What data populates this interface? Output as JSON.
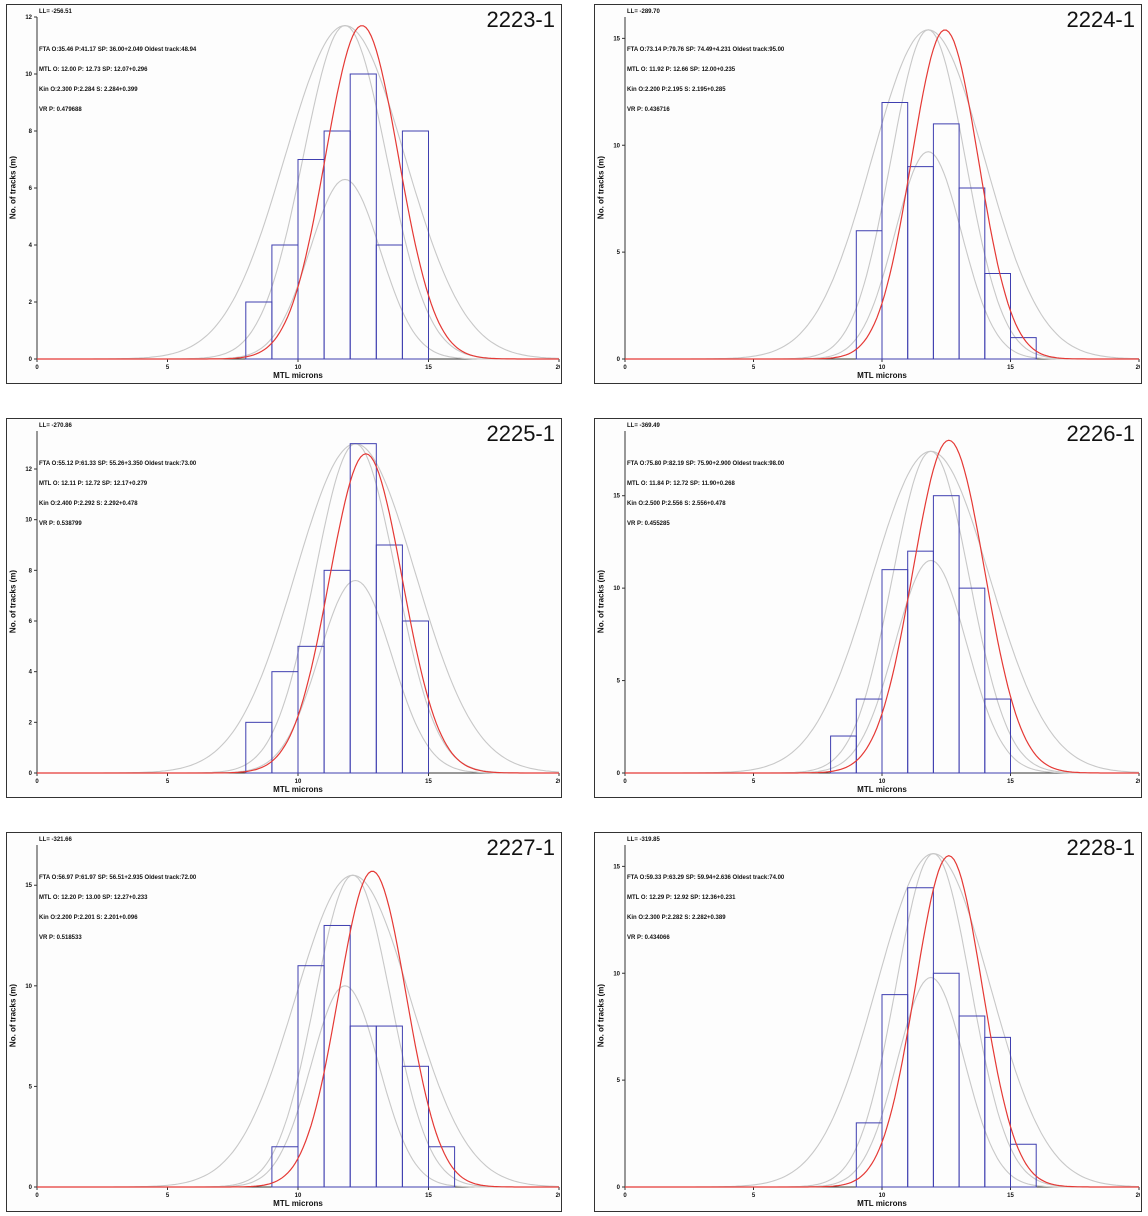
{
  "colors": {
    "fitted_curve": "#e53935",
    "bar_outline": "#3f3fb0",
    "gray_curve": "#c8c8c8",
    "axis": "#333333"
  },
  "chart_data": [
    {
      "type": "bar",
      "panel_id": "2223-1",
      "stats": [
        "LL= -256.51",
        "FTA O:35.46 P:41.17 SP: 36.00+2.049 Oldest track:48.94",
        "MTL O: 12.00 P: 12.73 SP: 12.07+0.296",
        "Kin O:2.300 P:2.284 S: 2.284+0.399",
        "VR P: 0.479688"
      ],
      "xlabel": "MTL microns",
      "ylabel": "No. of tracks (m)",
      "xlim": [
        0,
        20
      ],
      "ylim": [
        0,
        12
      ],
      "xticks": [
        0,
        5,
        10,
        15,
        20
      ],
      "yticks": [
        0,
        2,
        4,
        6,
        8,
        10,
        12
      ],
      "bins": [
        8,
        9,
        10,
        11,
        12,
        13,
        14
      ],
      "values": [
        2,
        4,
        7,
        8,
        10,
        4,
        8
      ],
      "red_curve": {
        "mean": 12.45,
        "sd": 1.4,
        "peak": 11.7
      },
      "gray_curves": [
        {
          "mean": 11.8,
          "sd": 1.6,
          "peak": 11.7
        },
        {
          "mean": 11.8,
          "sd": 1.35,
          "peak": 6.3
        },
        {
          "mean": 11.8,
          "sd": 2.3,
          "peak": 11.7
        }
      ]
    },
    {
      "type": "bar",
      "panel_id": "2224-1",
      "stats": [
        "LL= -289.70",
        "FTA O:73.14 P:79.76 SP: 74.49+4.231 Oldest track:95.00",
        "MTL O: 11.92 P: 12.66 SP: 12.00+0.235",
        "Kin O:2.200 P:2.195 S: 2.195+0.285",
        "VR P: 0.436716"
      ],
      "xlabel": "MTL microns",
      "ylabel": "No. of tracks (m)",
      "xlim": [
        0,
        20
      ],
      "ylim": [
        0,
        16
      ],
      "xticks": [
        0,
        5,
        10,
        15,
        20
      ],
      "yticks": [
        0,
        5,
        10,
        15
      ],
      "bins": [
        9,
        10,
        11,
        12,
        13,
        14,
        15
      ],
      "values": [
        6,
        12,
        9,
        11,
        8,
        4,
        1
      ],
      "red_curve": {
        "mean": 12.45,
        "sd": 1.3,
        "peak": 15.4
      },
      "gray_curves": [
        {
          "mean": 11.8,
          "sd": 1.45,
          "peak": 15.4
        },
        {
          "mean": 11.8,
          "sd": 1.3,
          "peak": 9.7
        },
        {
          "mean": 11.8,
          "sd": 2.2,
          "peak": 15.4
        }
      ]
    },
    {
      "type": "bar",
      "panel_id": "2225-1",
      "stats": [
        "LL= -270.86",
        "FTA O:55.12 P:61.33 SP: 55.26+3.350 Oldest track:73.00",
        "MTL O: 12.11 P: 12.72 SP: 12.17+0.279",
        "Kin O:2.400 P:2.292 S: 2.292+0.478",
        "VR P: 0.538799"
      ],
      "xlabel": "MTL microns",
      "ylabel": "No. of tracks (m)",
      "xlim": [
        0,
        20
      ],
      "ylim": [
        0,
        13.5
      ],
      "xticks": [
        0,
        5,
        10,
        15,
        20
      ],
      "yticks": [
        0,
        2,
        4,
        6,
        8,
        10,
        12
      ],
      "bins": [
        8,
        9,
        10,
        11,
        12,
        13,
        14
      ],
      "values": [
        2,
        4,
        5,
        8,
        13,
        9,
        6
      ],
      "red_curve": {
        "mean": 12.6,
        "sd": 1.4,
        "peak": 12.6
      },
      "gray_curves": [
        {
          "mean": 12.2,
          "sd": 1.55,
          "peak": 13.0
        },
        {
          "mean": 12.2,
          "sd": 1.4,
          "peak": 7.6
        },
        {
          "mean": 12.2,
          "sd": 2.3,
          "peak": 13.0
        }
      ]
    },
    {
      "type": "bar",
      "panel_id": "2226-1",
      "stats": [
        "LL= -369.49",
        "FTA O:75.80 P:82.19 SP: 75.90+2.900 Oldest track:98.00",
        "MTL O: 11.84 P: 12.72 SP: 11.90+0.268",
        "Kin O:2.500 P:2.556 S: 2.556+0.478",
        "VR P: 0.455285"
      ],
      "xlabel": "MTL microns",
      "ylabel": "No. of tracks (m)",
      "xlim": [
        0,
        20
      ],
      "ylim": [
        0,
        18.5
      ],
      "xticks": [
        0,
        5,
        10,
        15,
        20
      ],
      "yticks": [
        0,
        5,
        10,
        15
      ],
      "bins": [
        8,
        9,
        10,
        11,
        12,
        13,
        14
      ],
      "values": [
        2,
        4,
        11,
        12,
        15,
        10,
        4
      ],
      "red_curve": {
        "mean": 12.6,
        "sd": 1.4,
        "peak": 18.0
      },
      "gray_curves": [
        {
          "mean": 11.9,
          "sd": 1.5,
          "peak": 17.4
        },
        {
          "mean": 11.9,
          "sd": 1.4,
          "peak": 11.5
        },
        {
          "mean": 11.9,
          "sd": 2.3,
          "peak": 17.4
        }
      ]
    },
    {
      "type": "bar",
      "panel_id": "2227-1",
      "stats": [
        "LL= -321.66",
        "FTA O:56.97 P:61.97 SP: 56.51+2.935 Oldest track:72.00",
        "MTL O: 12.20 P: 13.00 SP: 12.27+0.233",
        "Kin O:2.200 P:2.201 S: 2.201+0.096",
        "VR P: 0.518533"
      ],
      "xlabel": "MTL microns",
      "ylabel": "No. of tracks (m)",
      "xlim": [
        0,
        20
      ],
      "ylim": [
        0,
        17
      ],
      "xticks": [
        0,
        5,
        10,
        15,
        20
      ],
      "yticks": [
        0,
        5,
        10,
        15
      ],
      "bins": [
        9,
        10,
        11,
        12,
        13,
        14,
        15
      ],
      "values": [
        2,
        11,
        13,
        8,
        8,
        6,
        2
      ],
      "red_curve": {
        "mean": 12.85,
        "sd": 1.3,
        "peak": 15.7
      },
      "gray_curves": [
        {
          "mean": 12.1,
          "sd": 1.45,
          "peak": 15.5
        },
        {
          "mean": 11.8,
          "sd": 1.3,
          "peak": 10.0
        },
        {
          "mean": 12.1,
          "sd": 2.2,
          "peak": 15.5
        }
      ]
    },
    {
      "type": "bar",
      "panel_id": "2228-1",
      "stats": [
        "LL= -319.85",
        "FTA O:59.33 P:63.29 SP: 59.94+2.636 Oldest track:74.00",
        "MTL O: 12.29 P: 12.92 SP: 12.36+0.231",
        "Kin O:2.300 P:2.282 S: 2.282+0.389",
        "VR P: 0.434066"
      ],
      "xlabel": "MTL microns",
      "ylabel": "No. of tracks (m)",
      "xlim": [
        0,
        20
      ],
      "ylim": [
        0,
        16
      ],
      "xticks": [
        0,
        5,
        10,
        15,
        20
      ],
      "yticks": [
        0,
        5,
        10,
        15
      ],
      "bins": [
        9,
        10,
        11,
        12,
        13,
        14,
        15
      ],
      "values": [
        3,
        9,
        14,
        10,
        8,
        7,
        2
      ],
      "red_curve": {
        "mean": 12.6,
        "sd": 1.3,
        "peak": 15.5
      },
      "gray_curves": [
        {
          "mean": 12.0,
          "sd": 1.45,
          "peak": 15.6
        },
        {
          "mean": 11.9,
          "sd": 1.3,
          "peak": 9.8
        },
        {
          "mean": 12.0,
          "sd": 2.2,
          "peak": 15.6
        }
      ]
    }
  ]
}
